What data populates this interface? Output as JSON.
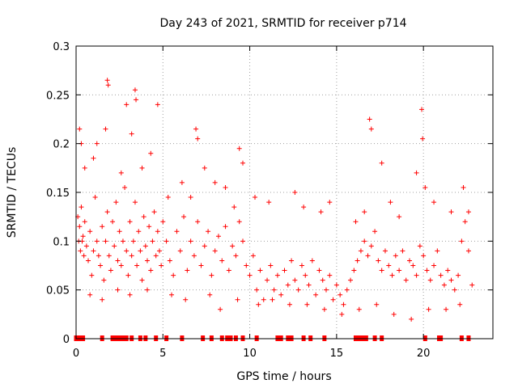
{
  "chart_data": {
    "type": "scatter",
    "title": "Day 243 of 2021, SRMTID for receiver p714",
    "xlabel": "GPS time / hours",
    "ylabel": "SRMTID / TECUs",
    "xlim": [
      0,
      24
    ],
    "ylim": [
      0,
      0.3
    ],
    "x_ticks": [
      0,
      5,
      10,
      15,
      20
    ],
    "x_tick_labels": [
      "0",
      "5",
      "10",
      "15",
      "20"
    ],
    "y_ticks": [
      0,
      0.05,
      0.1,
      0.15,
      0.2,
      0.25,
      0.3
    ],
    "y_tick_labels": [
      "0",
      "0.05",
      "0.1",
      "0.15",
      "0.2",
      "0.25",
      "0.3"
    ],
    "grid": true,
    "marker": "plus",
    "color": "#ff0000",
    "series": [
      {
        "name": "SRMTID",
        "x": [
          0.1,
          0.15,
          0.2,
          0.25,
          0.3,
          0.35,
          0.4,
          0.45,
          0.5,
          0.6,
          0.7,
          0.8,
          0.9,
          1.0,
          1.1,
          1.2,
          1.3,
          1.4,
          1.5,
          1.6,
          1.7,
          1.8,
          1.9,
          2.0,
          2.1,
          2.2,
          2.3,
          2.4,
          2.5,
          2.6,
          2.7,
          2.8,
          2.9,
          3.0,
          3.1,
          3.2,
          3.3,
          3.4,
          3.5,
          3.6,
          3.7,
          3.8,
          3.9,
          4.0,
          4.1,
          4.2,
          4.3,
          4.4,
          4.5,
          4.6,
          4.7,
          4.8,
          4.9,
          5.0,
          5.2,
          5.4,
          5.6,
          5.8,
          6.0,
          6.2,
          6.4,
          6.6,
          6.8,
          7.0,
          7.2,
          7.4,
          7.6,
          7.8,
          8.0,
          8.2,
          8.4,
          8.6,
          8.8,
          9.0,
          9.2,
          9.4,
          9.6,
          9.8,
          10.0,
          10.2,
          10.4,
          10.6,
          10.8,
          11.0,
          11.2,
          11.4,
          11.6,
          11.8,
          12.0,
          12.2,
          12.4,
          12.6,
          12.8,
          13.0,
          13.2,
          13.4,
          13.6,
          13.8,
          14.0,
          14.2,
          14.4,
          14.6,
          14.8,
          15.0,
          15.2,
          15.4,
          15.6,
          15.8,
          16.0,
          16.2,
          16.4,
          16.6,
          16.8,
          17.0,
          17.2,
          17.4,
          17.6,
          17.8,
          18.0,
          18.2,
          18.4,
          18.6,
          18.8,
          19.0,
          19.2,
          19.4,
          19.6,
          19.8,
          20.0,
          20.2,
          20.4,
          20.6,
          20.8,
          21.0,
          21.2,
          21.4,
          21.6,
          21.8,
          22.0,
          22.2,
          22.4,
          22.6,
          22.8,
          0.2,
          0.3,
          1.8,
          1.85,
          3.4,
          3.45,
          2.9,
          4.7,
          6.9,
          7.0,
          9.4,
          16.9,
          17.0,
          19.9,
          19.95,
          0.5,
          1.0,
          1.2,
          1.7,
          2.6,
          3.2,
          3.8,
          4.3,
          5.3,
          6.1,
          6.6,
          7.4,
          8.0,
          8.6,
          9.1,
          9.6,
          10.3,
          11.1,
          12.6,
          13.1,
          14.1,
          14.6,
          16.1,
          16.6,
          17.6,
          18.1,
          18.6,
          19.6,
          20.1,
          20.6,
          21.6,
          22.3,
          22.6,
          0.8,
          1.5,
          2.4,
          3.1,
          4.1,
          5.5,
          6.3,
          7.7,
          8.3,
          9.3,
          10.5,
          11.3,
          12.3,
          13.3,
          14.3,
          15.3,
          16.3,
          17.3,
          18.3,
          19.3,
          20.3,
          21.3,
          22.1,
          0.0,
          0.2,
          0.4,
          1.5,
          2.1,
          2.3,
          2.5,
          2.7,
          2.9,
          3.2,
          3.7,
          4.0,
          4.6,
          5.2,
          6.1,
          7.3,
          7.8,
          8.4,
          8.7,
          8.9,
          9.2,
          9.6,
          10.4,
          11.6,
          11.8,
          12.2,
          12.4,
          13.1,
          13.5,
          14.3,
          16.1,
          16.3,
          16.5,
          16.7,
          17.2,
          17.6,
          20.1,
          20.9,
          21.0,
          22.2,
          22.6
        ],
        "y": [
          0.125,
          0.1,
          0.115,
          0.09,
          0.135,
          0.1,
          0.105,
          0.085,
          0.12,
          0.095,
          0.08,
          0.11,
          0.065,
          0.09,
          0.145,
          0.1,
          0.085,
          0.075,
          0.115,
          0.06,
          0.1,
          0.13,
          0.085,
          0.07,
          0.12,
          0.095,
          0.14,
          0.08,
          0.11,
          0.075,
          0.1,
          0.155,
          0.09,
          0.065,
          0.12,
          0.085,
          0.1,
          0.14,
          0.075,
          0.11,
          0.09,
          0.06,
          0.125,
          0.095,
          0.08,
          0.115,
          0.07,
          0.1,
          0.13,
          0.085,
          0.11,
          0.09,
          0.075,
          0.12,
          0.1,
          0.08,
          0.065,
          0.11,
          0.09,
          0.125,
          0.07,
          0.1,
          0.085,
          0.12,
          0.075,
          0.095,
          0.11,
          0.065,
          0.09,
          0.105,
          0.08,
          0.115,
          0.07,
          0.095,
          0.085,
          0.12,
          0.1,
          0.075,
          0.065,
          0.085,
          0.05,
          0.07,
          0.04,
          0.06,
          0.075,
          0.05,
          0.065,
          0.045,
          0.07,
          0.055,
          0.08,
          0.06,
          0.05,
          0.075,
          0.065,
          0.055,
          0.08,
          0.045,
          0.07,
          0.06,
          0.05,
          0.065,
          0.04,
          0.055,
          0.045,
          0.035,
          0.05,
          0.06,
          0.07,
          0.08,
          0.09,
          0.1,
          0.085,
          0.095,
          0.11,
          0.08,
          0.07,
          0.09,
          0.075,
          0.065,
          0.085,
          0.07,
          0.09,
          0.06,
          0.08,
          0.075,
          0.065,
          0.095,
          0.085,
          0.07,
          0.06,
          0.075,
          0.09,
          0.065,
          0.055,
          0.07,
          0.06,
          0.05,
          0.065,
          0.1,
          0.12,
          0.09,
          0.055,
          0.215,
          0.2,
          0.265,
          0.26,
          0.255,
          0.245,
          0.24,
          0.24,
          0.215,
          0.205,
          0.195,
          0.225,
          0.215,
          0.235,
          0.205,
          0.175,
          0.185,
          0.2,
          0.215,
          0.17,
          0.21,
          0.175,
          0.19,
          0.145,
          0.16,
          0.145,
          0.175,
          0.16,
          0.155,
          0.135,
          0.18,
          0.145,
          0.14,
          0.15,
          0.135,
          0.13,
          0.14,
          0.12,
          0.13,
          0.18,
          0.14,
          0.125,
          0.17,
          0.155,
          0.14,
          0.13,
          0.155,
          0.13,
          0.045,
          0.04,
          0.05,
          0.045,
          0.05,
          0.045,
          0.04,
          0.045,
          0.03,
          0.04,
          0.035,
          0.04,
          0.035,
          0.035,
          0.03,
          0.025,
          0.03,
          0.035,
          0.025,
          0.02,
          0.03,
          0.03,
          0.035,
          0,
          0,
          0,
          0,
          0,
          0,
          0,
          0,
          0,
          0,
          0,
          0,
          0,
          0,
          0,
          0,
          0,
          0,
          0,
          0,
          0,
          0,
          0,
          0,
          0,
          0,
          0,
          0,
          0,
          0,
          0,
          0,
          0,
          0,
          0,
          0,
          0,
          0,
          0,
          0,
          0
        ]
      }
    ]
  }
}
